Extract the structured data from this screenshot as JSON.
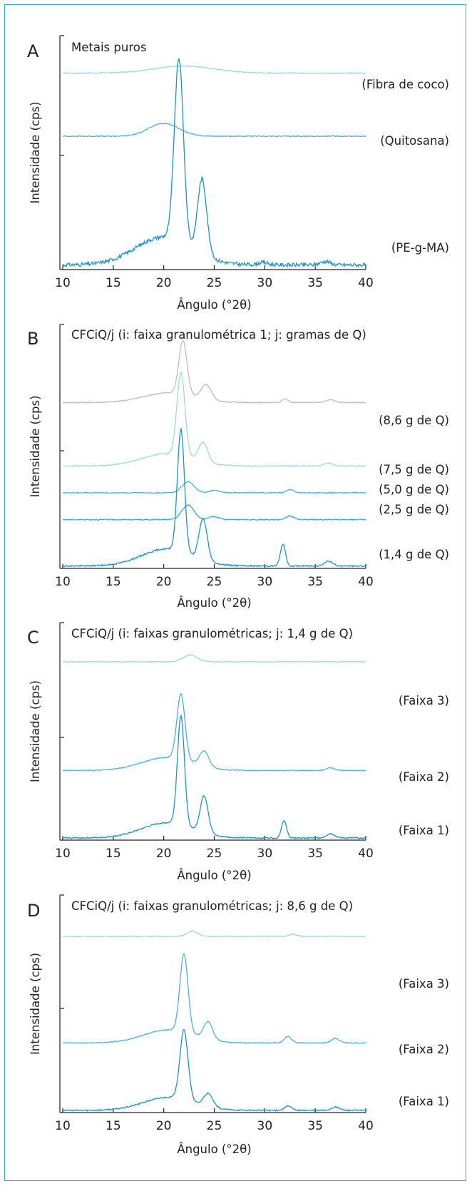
{
  "colors": {
    "frame": "#2ea8d6",
    "axis": "#222222",
    "dark_blue": "#1d94c8",
    "mid_blue": "#4bb3d8",
    "light_blue": "#9fd6ec",
    "gray": "#bdbdbd"
  },
  "chart_data": [
    {
      "type": "line",
      "panel_letter": "A",
      "title": "Metais puros",
      "xlabel": "Ângulo (°2θ)",
      "ylabel": "Intensidade (cps)",
      "xlim": [
        10,
        40
      ],
      "x_ticks": [
        10,
        15,
        20,
        25,
        30,
        35,
        40
      ],
      "series": [
        {
          "name": "(Fibra de coco)",
          "color": "#9fd6ec",
          "offset": 0.84,
          "base": 0.0,
          "noise": 0.002,
          "peaks": [
            {
              "x": 22.0,
              "h": 0.03,
              "w": 3.0
            }
          ]
        },
        {
          "name": "(Quitosana)",
          "color": "#4bb3d8",
          "offset": 0.57,
          "base": 0.0,
          "noise": 0.002,
          "peaks": [
            {
              "x": 20.0,
              "h": 0.055,
              "w": 1.5
            }
          ]
        },
        {
          "name": "(PE-g-MA)",
          "color": "#1d94c8",
          "offset": 0.02,
          "base": 0.0,
          "noise": 0.008,
          "peaks": [
            {
              "x": 21.5,
              "h": 0.78,
              "w": 0.45
            },
            {
              "x": 23.8,
              "h": 0.32,
              "w": 0.45
            },
            {
              "x": 20.0,
              "h": 0.12,
              "w": 2.8
            },
            {
              "x": 29.8,
              "h": 0.01,
              "w": 0.5
            },
            {
              "x": 36.0,
              "h": 0.015,
              "w": 0.5
            }
          ]
        }
      ]
    },
    {
      "type": "line",
      "panel_letter": "B",
      "title": "CFCiQ/j (i: faixa granulométrica 1; j: gramas de Q)",
      "xlabel": "Ângulo (°2θ)",
      "ylabel": "Intensidade (cps)",
      "xlim": [
        10,
        40
      ],
      "x_ticks": [
        10,
        15,
        20,
        25,
        30,
        35,
        40
      ],
      "series": [
        {
          "name": "(8,6 g de Q)",
          "color": "#bdbdbd",
          "offset": 0.68,
          "base": 0.0,
          "noise": 0.002,
          "peaks": [
            {
              "x": 21.9,
              "h": 0.22,
              "w": 0.4
            },
            {
              "x": 24.2,
              "h": 0.06,
              "w": 0.5
            },
            {
              "x": 20.5,
              "h": 0.04,
              "w": 2.5
            },
            {
              "x": 32.0,
              "h": 0.015,
              "w": 0.3
            },
            {
              "x": 36.5,
              "h": 0.012,
              "w": 0.4
            }
          ]
        },
        {
          "name": "(7,5 g de Q)",
          "color": "#9fd6ec",
          "offset": 0.42,
          "base": 0.0,
          "noise": 0.002,
          "peaks": [
            {
              "x": 21.7,
              "h": 0.34,
              "w": 0.4
            },
            {
              "x": 23.9,
              "h": 0.08,
              "w": 0.45
            },
            {
              "x": 20.3,
              "h": 0.05,
              "w": 2.5
            },
            {
              "x": 36.3,
              "h": 0.012,
              "w": 0.4
            }
          ]
        },
        {
          "name": "(5,0 g de Q)",
          "color": "#4bb3d8",
          "offset": 0.31,
          "base": 0.0,
          "noise": 0.002,
          "peaks": [
            {
              "x": 22.4,
              "h": 0.045,
              "w": 0.6
            },
            {
              "x": 25.0,
              "h": 0.01,
              "w": 0.5
            },
            {
              "x": 32.5,
              "h": 0.012,
              "w": 0.4
            }
          ]
        },
        {
          "name": "(2,5 g de Q)",
          "color": "#3aaad4",
          "offset": 0.2,
          "base": 0.0,
          "noise": 0.002,
          "peaks": [
            {
              "x": 22.4,
              "h": 0.06,
              "w": 0.6
            },
            {
              "x": 25.0,
              "h": 0.012,
              "w": 0.5
            },
            {
              "x": 32.5,
              "h": 0.015,
              "w": 0.4
            }
          ]
        },
        {
          "name": "(1,4 g de Q)",
          "color": "#1d94c8",
          "offset": 0.01,
          "base": 0.0,
          "noise": 0.003,
          "peaks": [
            {
              "x": 21.7,
              "h": 0.5,
              "w": 0.35
            },
            {
              "x": 23.9,
              "h": 0.17,
              "w": 0.4
            },
            {
              "x": 20.3,
              "h": 0.07,
              "w": 2.5
            },
            {
              "x": 31.8,
              "h": 0.09,
              "w": 0.25
            },
            {
              "x": 36.3,
              "h": 0.02,
              "w": 0.4
            }
          ]
        }
      ]
    },
    {
      "type": "line",
      "panel_letter": "C",
      "title": "CFCiQ/j (i: faixas granulométricas; j: 1,4 g de Q)",
      "xlabel": "Ângulo (°2θ)",
      "ylabel": "Intensidade (cps)",
      "xlim": [
        10,
        40
      ],
      "x_ticks": [
        10,
        15,
        20,
        25,
        30,
        35,
        40
      ],
      "series": [
        {
          "name": "(Faixa 3)",
          "color": "#9fd6ec",
          "offset": 0.82,
          "base": 0.0,
          "noise": 0.002,
          "peaks": [
            {
              "x": 22.6,
              "h": 0.03,
              "w": 0.7
            }
          ]
        },
        {
          "name": "(Faixa 2)",
          "color": "#4bb3d8",
          "offset": 0.32,
          "base": 0.0,
          "noise": 0.002,
          "peaks": [
            {
              "x": 21.7,
              "h": 0.3,
              "w": 0.4
            },
            {
              "x": 24.0,
              "h": 0.07,
              "w": 0.45
            },
            {
              "x": 20.3,
              "h": 0.06,
              "w": 2.5
            },
            {
              "x": 36.5,
              "h": 0.012,
              "w": 0.4
            }
          ]
        },
        {
          "name": "(Faixa 1)",
          "color": "#1d94c8",
          "offset": 0.01,
          "base": 0.0,
          "noise": 0.003,
          "peaks": [
            {
              "x": 21.7,
              "h": 0.5,
              "w": 0.35
            },
            {
              "x": 24.0,
              "h": 0.17,
              "w": 0.4
            },
            {
              "x": 20.3,
              "h": 0.07,
              "w": 2.5
            },
            {
              "x": 31.9,
              "h": 0.08,
              "w": 0.25
            },
            {
              "x": 36.5,
              "h": 0.02,
              "w": 0.4
            }
          ]
        }
      ]
    },
    {
      "type": "line",
      "panel_letter": "D",
      "title": "CFCiQ/j (i: faixas granulométricas; j: 8,6 g de Q)",
      "xlabel": "Ângulo (°2θ)",
      "ylabel": "Intensidade (cps)",
      "xlim": [
        10,
        40
      ],
      "x_ticks": [
        10,
        15,
        20,
        25,
        30,
        35,
        40
      ],
      "series": [
        {
          "name": "(Faixa 3)",
          "color": "#9fd6ec",
          "offset": 0.81,
          "base": 0.0,
          "noise": 0.002,
          "peaks": [
            {
              "x": 22.8,
              "h": 0.025,
              "w": 0.5
            },
            {
              "x": 32.8,
              "h": 0.01,
              "w": 0.4
            }
          ]
        },
        {
          "name": "(Faixa 2)",
          "color": "#4bb3d8",
          "offset": 0.32,
          "base": 0.0,
          "noise": 0.002,
          "peaks": [
            {
              "x": 22.0,
              "h": 0.36,
              "w": 0.4
            },
            {
              "x": 24.4,
              "h": 0.08,
              "w": 0.45
            },
            {
              "x": 20.5,
              "h": 0.06,
              "w": 2.5
            },
            {
              "x": 32.3,
              "h": 0.03,
              "w": 0.35
            },
            {
              "x": 37.0,
              "h": 0.02,
              "w": 0.4
            }
          ]
        },
        {
          "name": "(Faixa 1)",
          "color": "#1d94c8",
          "offset": 0.01,
          "base": 0.0,
          "noise": 0.003,
          "peaks": [
            {
              "x": 22.0,
              "h": 0.32,
              "w": 0.4
            },
            {
              "x": 24.4,
              "h": 0.06,
              "w": 0.45
            },
            {
              "x": 20.5,
              "h": 0.06,
              "w": 2.5
            },
            {
              "x": 32.3,
              "h": 0.02,
              "w": 0.35
            },
            {
              "x": 37.0,
              "h": 0.015,
              "w": 0.4
            }
          ]
        }
      ]
    }
  ]
}
